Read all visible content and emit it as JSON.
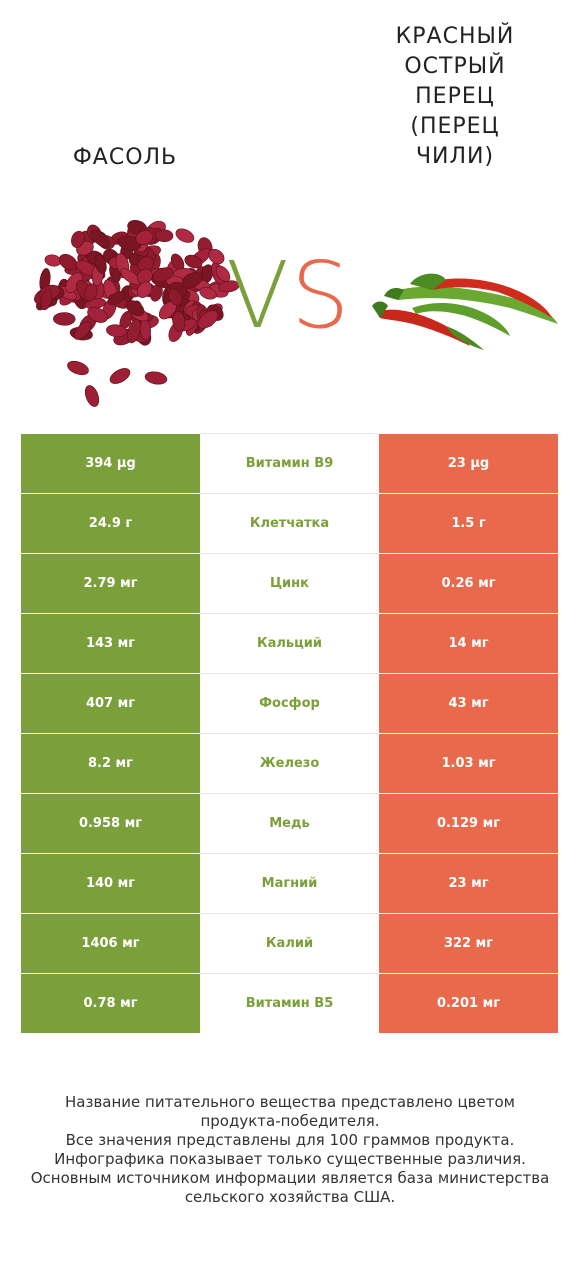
{
  "food_left": {
    "name": "ФАСОЛЬ",
    "image": "red-kidney-beans"
  },
  "food_right": {
    "name": "КРАСНЫЙ ОСТРЫЙ ПЕРЕЦ (ПЕРЕЦ ЧИЛИ)",
    "image": "chili-peppers"
  },
  "vs": {
    "v": "V",
    "s": "S"
  },
  "colors": {
    "left_winner": "#7ba03b",
    "right_winner": "#e8694b"
  },
  "chart_data": {
    "type": "table",
    "columns": [
      "ФАСОЛЬ",
      "",
      "КРАСНЫЙ ОСТРЫЙ ПЕРЕЦ (ПЕРЕЦ ЧИЛИ)"
    ],
    "rows": [
      {
        "nutrient": "Витамин B9",
        "left": "394 µg",
        "right": "23 µg",
        "winner": "left"
      },
      {
        "nutrient": "Клетчатка",
        "left": "24.9 г",
        "right": "1.5 г",
        "winner": "left"
      },
      {
        "nutrient": "Цинк",
        "left": "2.79 мг",
        "right": "0.26 мг",
        "winner": "left"
      },
      {
        "nutrient": "Кальций",
        "left": "143 мг",
        "right": "14 мг",
        "winner": "left"
      },
      {
        "nutrient": "Фосфор",
        "left": "407 мг",
        "right": "43 мг",
        "winner": "left"
      },
      {
        "nutrient": "Железо",
        "left": "8.2 мг",
        "right": "1.03 мг",
        "winner": "left"
      },
      {
        "nutrient": "Медь",
        "left": "0.958 мг",
        "right": "0.129 мг",
        "winner": "left"
      },
      {
        "nutrient": "Магний",
        "left": "140 мг",
        "right": "23 мг",
        "winner": "left"
      },
      {
        "nutrient": "Калий",
        "left": "1406 мг",
        "right": "322 мг",
        "winner": "left"
      },
      {
        "nutrient": "Витамин B5",
        "left": "0.78 мг",
        "right": "0.201 мг",
        "winner": "left"
      }
    ]
  },
  "footer": {
    "lines": [
      "Название питательного вещества представлено цветом",
      "продукта-победителя.",
      "Все значения представлены для 100 граммов продукта.",
      "Инфографика показывает только существенные различия.",
      "Основным источником информации является база министерства",
      "сельского хозяйства США."
    ]
  }
}
